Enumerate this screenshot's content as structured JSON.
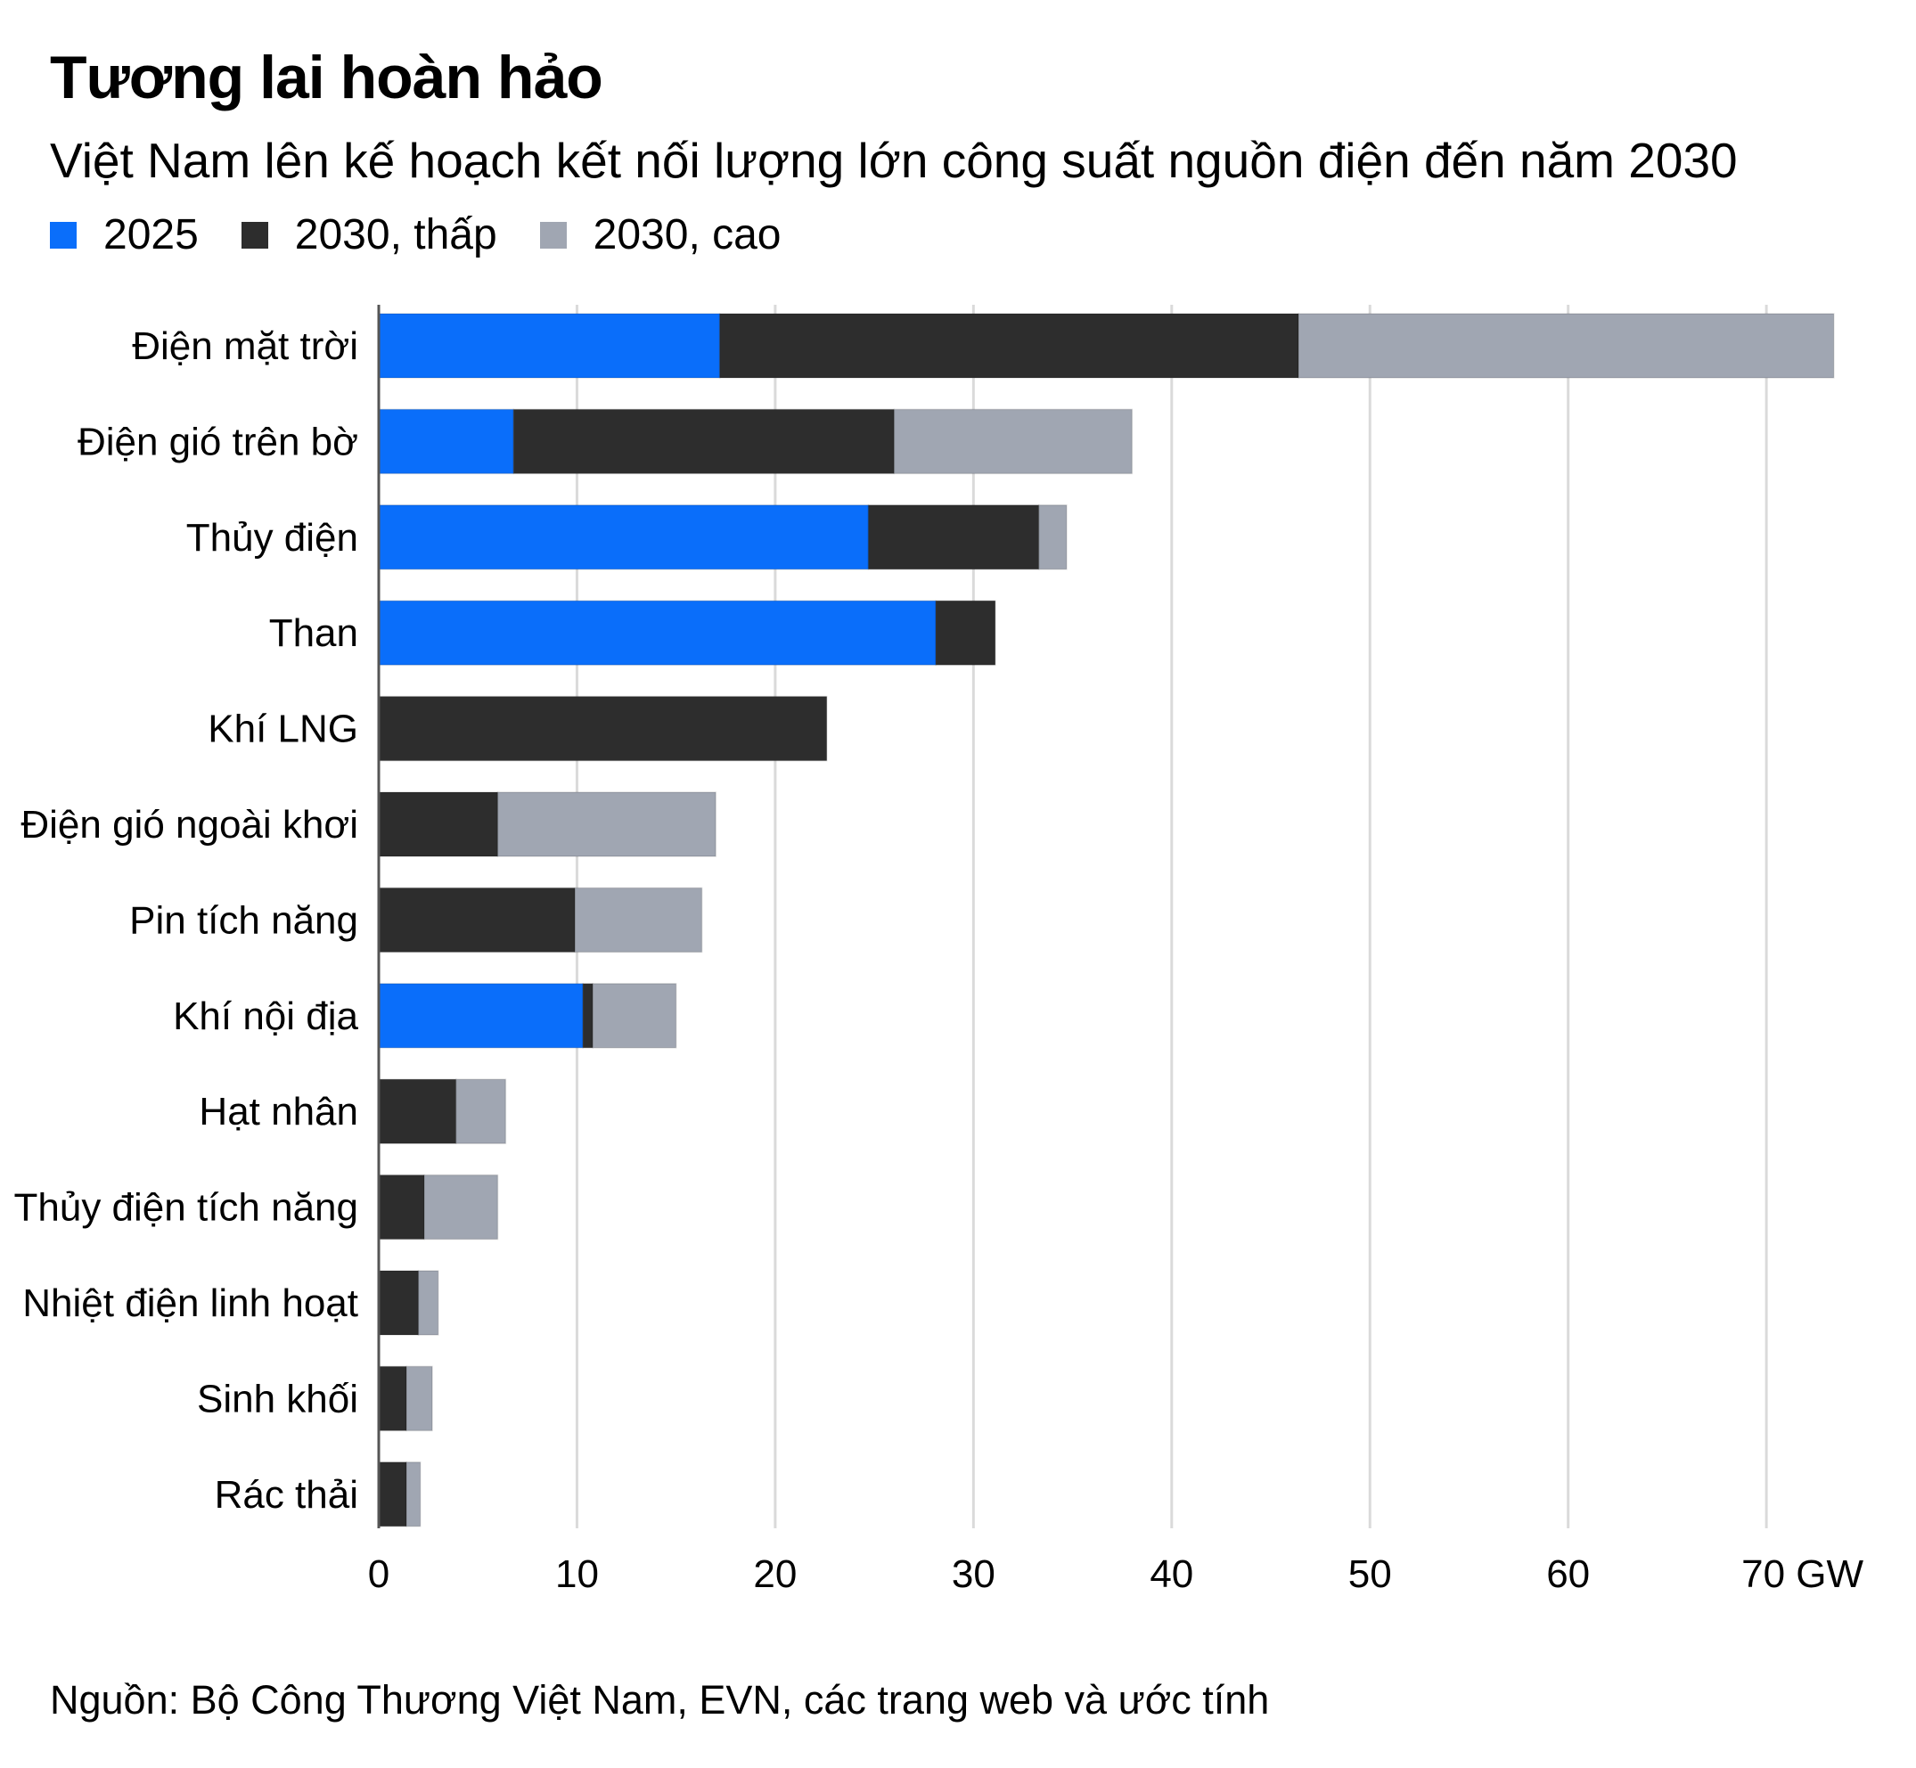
{
  "title": "Tương lai hoàn hảo",
  "subtitle": "Việt Nam lên kế hoạch kết nối lượng lớn công suất nguồn điện đến năm 2030",
  "source": "Nguồn: Bộ Công Thương Việt Nam, EVN, các trang web và ước tính",
  "colors": {
    "s2025": "#0a6efa",
    "low": "#2d2d2d",
    "high": "#a0a6b2",
    "grid": "#dadada"
  },
  "chart_data": {
    "type": "bar",
    "orientation": "horizontal",
    "stacked": true,
    "categories": [
      "Điện mặt trời",
      "Điện gió trên bờ",
      "Thủy điện",
      "Than",
      "Khí LNG",
      "Điện gió ngoài khơi",
      "Pin tích năng",
      "Khí nội địa",
      "Hạt nhân",
      "Thủy điện tích năng",
      "Nhiệt điện linh hoạt",
      "Sinh khối",
      "Rác thải"
    ],
    "series": [
      {
        "name": "2025",
        "values": [
          17.2,
          6.8,
          24.7,
          28.1,
          0,
          0,
          0,
          10.3,
          0,
          0,
          0,
          0,
          0
        ]
      },
      {
        "name": "2030, thấp",
        "values": [
          29.2,
          19.2,
          8.6,
          3.0,
          22.6,
          6.0,
          9.9,
          0.5,
          3.9,
          2.3,
          2.0,
          1.4,
          1.4
        ]
      },
      {
        "name": "2030, cao",
        "values": [
          27.0,
          12.0,
          1.4,
          0,
          0,
          11.0,
          6.4,
          4.2,
          2.5,
          3.7,
          1.0,
          1.3,
          0.7
        ]
      }
    ],
    "xticks": [
      "0",
      "10",
      "20",
      "30",
      "40",
      "50",
      "60",
      "70 GW"
    ],
    "xtick_values": [
      0,
      10,
      20,
      30,
      40,
      50,
      60,
      70
    ],
    "xlim": [
      0,
      73.5
    ],
    "grid": true,
    "legend_position": "top-left"
  }
}
